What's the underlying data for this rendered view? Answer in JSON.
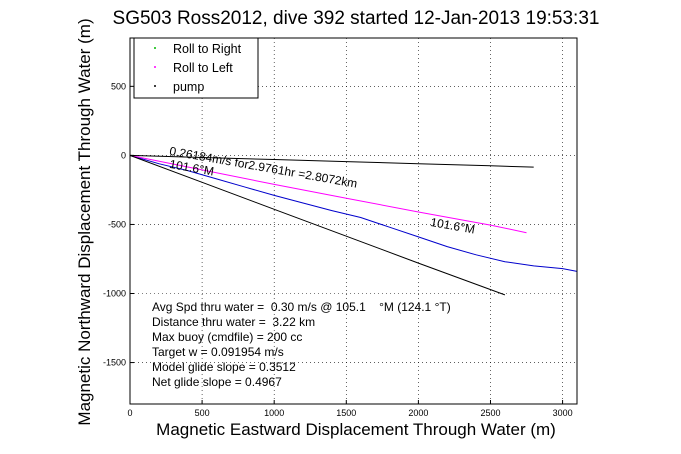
{
  "chart_data": {
    "type": "line",
    "title": "SG503 Ross2012, dive 392 started 12-Jan-2013 19:53:31",
    "xlabel": "Magnetic Eastward Displacement Through Water (m)",
    "ylabel": "Magnetic Northward Displacement Through Water (m)",
    "xlim": [
      0,
      3100
    ],
    "ylim": [
      -1800,
      850
    ],
    "xticks": [
      0,
      500,
      1000,
      1500,
      2000,
      2500,
      3000
    ],
    "yticks": [
      -1500,
      -1000,
      -500,
      0,
      500
    ],
    "grid": true,
    "legend_position": "top-left",
    "legend": [
      {
        "name": "Roll to Right",
        "color": "#00bb00"
      },
      {
        "name": "Roll to Left",
        "color": "#ff00ff"
      },
      {
        "name": "pump",
        "color": "#000000"
      }
    ],
    "series": [
      {
        "name": "",
        "color": "#0000cc",
        "x": [
          0,
          200,
          400,
          600,
          800,
          1000,
          1200,
          1400,
          1600,
          1800,
          2000,
          2200,
          2400,
          2600,
          2800,
          3000,
          3100
        ],
        "y": [
          0,
          -60,
          -110,
          -170,
          -230,
          -290,
          -345,
          -400,
          -450,
          -520,
          -590,
          -660,
          -720,
          -770,
          -800,
          -820,
          -840
        ]
      },
      {
        "name": "",
        "color": "#ff00ff",
        "x": [
          0,
          500,
          1000,
          1500,
          2000,
          2500,
          2750
        ],
        "y": [
          0,
          -105,
          -210,
          -310,
          -410,
          -505,
          -560
        ]
      },
      {
        "name": "",
        "color": "#000000",
        "x": [
          0,
          500,
          1000,
          1500,
          2000,
          2500,
          2800
        ],
        "y": [
          0,
          -15,
          -30,
          -45,
          -60,
          -75,
          -85
        ]
      },
      {
        "name": "",
        "color": "#000000",
        "x": [
          0,
          500,
          1000,
          1500,
          2000,
          2600
        ],
        "y": [
          0,
          -195,
          -390,
          -585,
          -780,
          -1010
        ]
      }
    ],
    "annotations": [
      {
        "text": "0.26184m/s for2.9761hr =2.8072km",
        "x": 270,
        "y": 5,
        "rotation": 10
      },
      {
        "text": "101.6°M",
        "x": 270,
        "y": -90,
        "rotation": 10
      },
      {
        "text": "101.6°M",
        "x": 2080,
        "y": -510,
        "rotation": 10
      }
    ],
    "stats": [
      "Avg Spd thru water =  0.30 m/s @ 105.1    °M (124.1 °T)",
      "Distance thru water =  3.22 km",
      "Max buoy (cmdfile) = 200 cc",
      "Target w = 0.091954 m/s",
      "Model glide slope = 0.3512",
      "Net glide slope = 0.4967"
    ]
  }
}
